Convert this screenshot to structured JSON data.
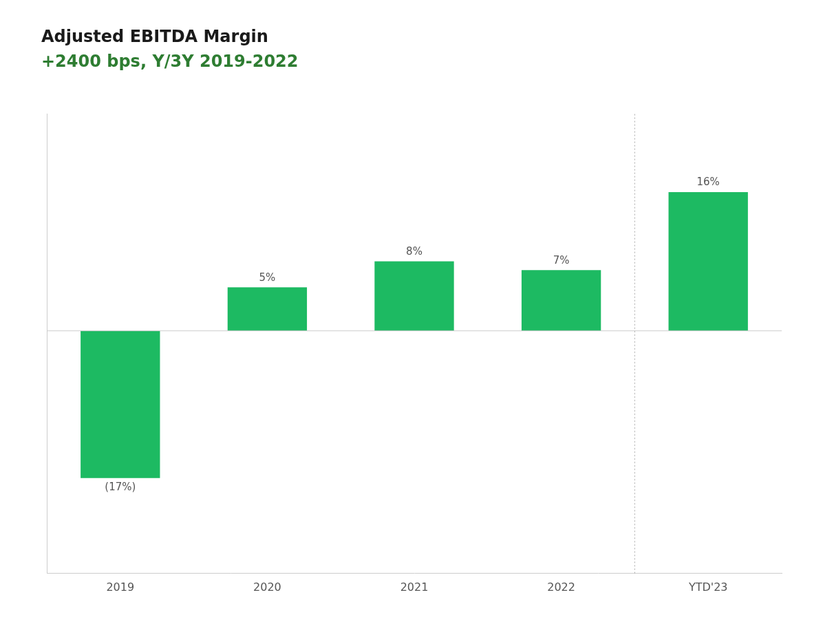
{
  "chart_data": {
    "type": "bar",
    "title": "Adjusted EBITDA Margin",
    "subtitle": "+2400 bps, Y/3Y 2019-2022",
    "categories": [
      "2019",
      "2020",
      "2021",
      "2022",
      "YTD'23"
    ],
    "values": [
      -17,
      5,
      8,
      7,
      16
    ],
    "value_labels": [
      "(17%)",
      "5%",
      "8%",
      "7%",
      "16%"
    ],
    "data_labels": true,
    "color": "#1dba62",
    "ylim": [
      -28,
      25
    ],
    "grid": false,
    "tick_labels": "x"
  }
}
